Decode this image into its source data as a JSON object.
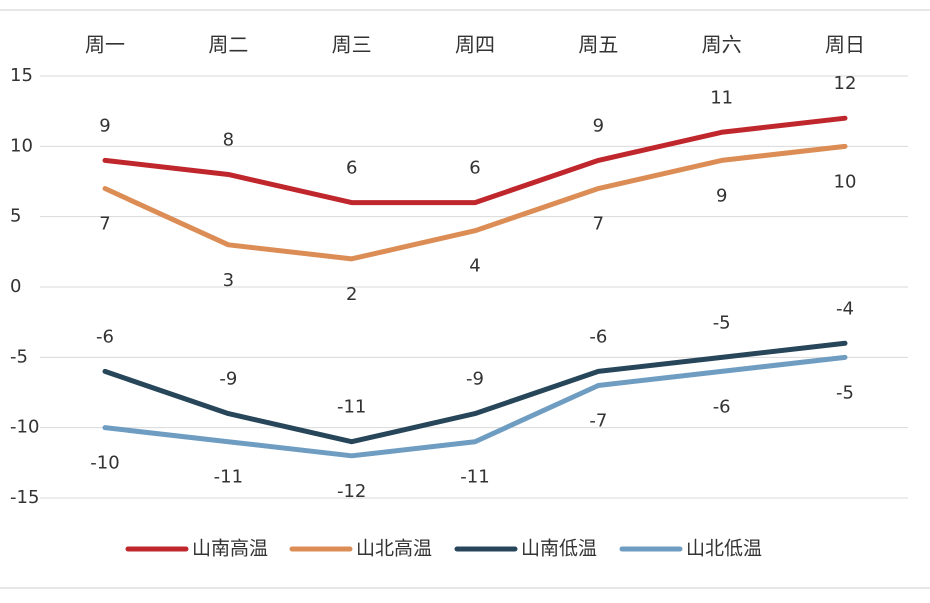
{
  "chart_data": {
    "type": "line",
    "title": "",
    "xlabel": "",
    "ylabel": "",
    "categories": [
      "周一",
      "周二",
      "周三",
      "周四",
      "周五",
      "周六",
      "周日"
    ],
    "y_ticks": [
      "15",
      "10",
      "5",
      "0",
      "-5",
      "-10",
      "-15"
    ],
    "ylim": [
      -15,
      15
    ],
    "grid": true,
    "x_axis_position": "top",
    "legend_position": "bottom",
    "series": [
      {
        "name": "山南高温",
        "color": "#c0272d",
        "values": [
          9,
          8,
          6,
          6,
          9,
          11,
          12
        ],
        "labels": [
          "9",
          "8",
          "6",
          "6",
          "9",
          "11",
          "12"
        ],
        "label_side": "above"
      },
      {
        "name": "山北高温",
        "color": "#dc8d55",
        "values": [
          7,
          3,
          2,
          4,
          7,
          9,
          10
        ],
        "labels": [
          "7",
          "3",
          "2",
          "4",
          "7",
          "9",
          "10"
        ],
        "label_side": "below"
      },
      {
        "name": "山南低温",
        "color": "#27465a",
        "values": [
          -6,
          -9,
          -11,
          -9,
          -6,
          -5,
          -4
        ],
        "labels": [
          "-6",
          "-9",
          "-11",
          "-9",
          "-6",
          "-5",
          "-4"
        ],
        "label_side": "above"
      },
      {
        "name": "山北低温",
        "color": "#6f9dc2",
        "values": [
          -10,
          -11,
          -12,
          -11,
          -7,
          -6,
          -5
        ],
        "labels": [
          "-10",
          "-11",
          "-12",
          "-11",
          "-7",
          "-6",
          "-5"
        ],
        "label_side": "below"
      }
    ]
  }
}
